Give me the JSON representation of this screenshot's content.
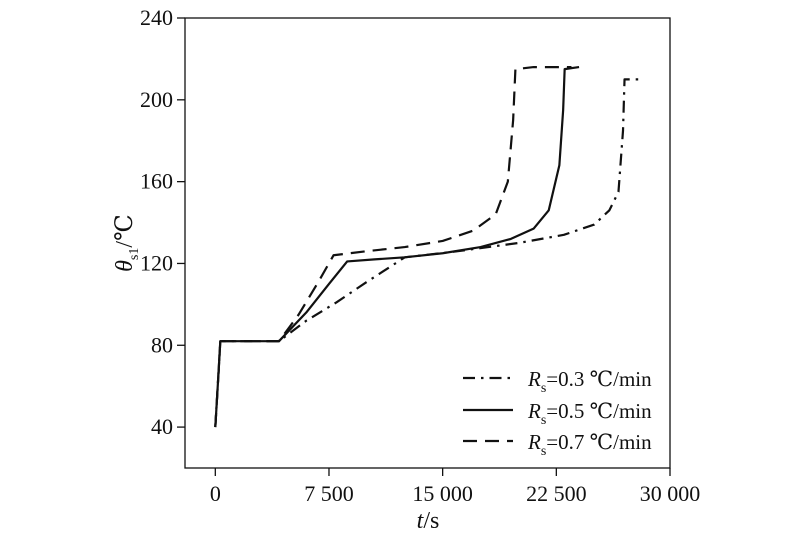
{
  "colors": {
    "line": "#111111",
    "background": "#ffffff"
  },
  "chart_data": {
    "type": "line",
    "xlim": [
      -2000,
      30000
    ],
    "ylim": [
      20,
      240
    ],
    "x_ticks": [
      0,
      7500,
      15000,
      22500,
      30000
    ],
    "x_tick_labels": [
      "0",
      "7 500",
      "15 000",
      "22 500",
      "30 000"
    ],
    "y_ticks": [
      40,
      80,
      120,
      160,
      200,
      240
    ],
    "y_tick_labels": [
      "40",
      "80",
      "120",
      "160",
      "200",
      "240"
    ],
    "xlabel": {
      "italic": "t",
      "rest": "/s"
    },
    "ylabel": {
      "italic": "θ",
      "sub": "s1",
      "rest": "/℃"
    },
    "grid": false,
    "legend_position": "bottom-right",
    "series": [
      {
        "name": {
          "italic": "R",
          "sub": "s",
          "rest": "=0.3 ℃/min"
        },
        "dash": "dashdot",
        "points": [
          [
            0,
            40
          ],
          [
            200,
            65
          ],
          [
            330,
            82
          ],
          [
            4200,
            82
          ],
          [
            6000,
            92
          ],
          [
            8000,
            101
          ],
          [
            10000,
            111
          ],
          [
            12500,
            123
          ],
          [
            16000,
            126
          ],
          [
            20000,
            130
          ],
          [
            23000,
            134
          ],
          [
            25000,
            139
          ],
          [
            26000,
            146
          ],
          [
            26600,
            155
          ],
          [
            26900,
            185
          ],
          [
            27000,
            210
          ],
          [
            28100,
            210
          ]
        ]
      },
      {
        "name": {
          "italic": "R",
          "sub": "s",
          "rest": "=0.5 ℃/min"
        },
        "dash": "solid",
        "points": [
          [
            0,
            40
          ],
          [
            200,
            65
          ],
          [
            330,
            82
          ],
          [
            4200,
            82
          ],
          [
            6000,
            96
          ],
          [
            7500,
            110
          ],
          [
            8700,
            121
          ],
          [
            10500,
            122
          ],
          [
            12500,
            123
          ],
          [
            15000,
            125
          ],
          [
            17500,
            128
          ],
          [
            19500,
            132
          ],
          [
            21000,
            137
          ],
          [
            22000,
            146
          ],
          [
            22700,
            168
          ],
          [
            22950,
            195
          ],
          [
            23050,
            215
          ],
          [
            24000,
            216
          ]
        ]
      },
      {
        "name": {
          "italic": "R",
          "sub": "s",
          "rest": "=0.7 ℃/min"
        },
        "dash": "dashed",
        "points": [
          [
            0,
            40
          ],
          [
            200,
            65
          ],
          [
            330,
            82
          ],
          [
            4200,
            82
          ],
          [
            5500,
            95
          ],
          [
            6800,
            111
          ],
          [
            7800,
            124
          ],
          [
            10000,
            126
          ],
          [
            12500,
            128
          ],
          [
            15000,
            131
          ],
          [
            17000,
            136
          ],
          [
            18500,
            144
          ],
          [
            19300,
            160
          ],
          [
            19650,
            190
          ],
          [
            19800,
            215
          ],
          [
            21000,
            216
          ],
          [
            22000,
            216
          ],
          [
            22500,
            216
          ],
          [
            23500,
            216
          ]
        ]
      }
    ]
  }
}
